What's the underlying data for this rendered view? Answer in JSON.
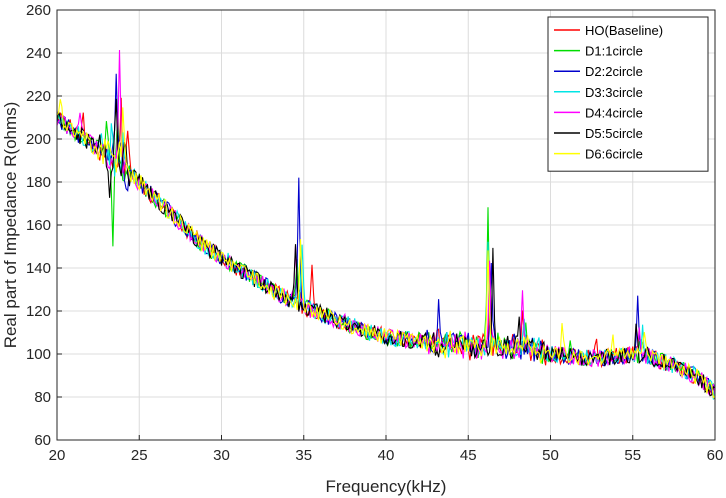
{
  "chart_data": {
    "type": "line",
    "title": "",
    "xlabel": "Frequency(kHz)",
    "ylabel": "Real part of Impedance R(ohms)",
    "xlim": [
      20,
      60
    ],
    "ylim": [
      60,
      260
    ],
    "xticks": [
      20,
      25,
      30,
      35,
      40,
      45,
      50,
      55,
      60
    ],
    "yticks": [
      60,
      80,
      100,
      120,
      140,
      160,
      180,
      200,
      220,
      240,
      260
    ],
    "grid": true,
    "legend_position": "top-right",
    "x_step": 0.1,
    "trend": [
      [
        20,
        210
      ],
      [
        21,
        204
      ],
      [
        22,
        198
      ],
      [
        23,
        193
      ],
      [
        24,
        187
      ],
      [
        25,
        180
      ],
      [
        26,
        172
      ],
      [
        27,
        165
      ],
      [
        28,
        157
      ],
      [
        29,
        150
      ],
      [
        30,
        145
      ],
      [
        31,
        140
      ],
      [
        32,
        135
      ],
      [
        33,
        130
      ],
      [
        34,
        126
      ],
      [
        35,
        122
      ],
      [
        36,
        119
      ],
      [
        37,
        116
      ],
      [
        38,
        113
      ],
      [
        39,
        110
      ],
      [
        40,
        108
      ],
      [
        41,
        107
      ],
      [
        42,
        106
      ],
      [
        43,
        105
      ],
      [
        44,
        104
      ],
      [
        45,
        104
      ],
      [
        46,
        104
      ],
      [
        47,
        104
      ],
      [
        48,
        103
      ],
      [
        49,
        102
      ],
      [
        50,
        100
      ],
      [
        51,
        99
      ],
      [
        52,
        98
      ],
      [
        53,
        98
      ],
      [
        54,
        99
      ],
      [
        55,
        100
      ],
      [
        56,
        99
      ],
      [
        57,
        96
      ],
      [
        58,
        93
      ],
      [
        59,
        89
      ],
      [
        60,
        82
      ]
    ],
    "series": [
      {
        "name": "HO(Baseline)",
        "color": "#ff0000",
        "noise": 4,
        "peaks": [
          [
            21.6,
            12
          ],
          [
            23.9,
            24
          ],
          [
            24.3,
            26
          ],
          [
            34.7,
            10
          ],
          [
            35.5,
            20
          ],
          [
            46.3,
            20
          ],
          [
            48.3,
            14
          ],
          [
            52.8,
            8
          ],
          [
            55.4,
            8
          ]
        ]
      },
      {
        "name": "D1:1circle",
        "color": "#00dd00",
        "noise": 4,
        "peaks": [
          [
            23.0,
            10
          ],
          [
            23.4,
            -38
          ],
          [
            23.7,
            18
          ],
          [
            34.6,
            22
          ],
          [
            46.2,
            64
          ],
          [
            48.5,
            12
          ],
          [
            51.2,
            8
          ],
          [
            55.5,
            10
          ]
        ]
      },
      {
        "name": "D2:2circle",
        "color": "#0000cc",
        "noise": 4,
        "peaks": [
          [
            23.6,
            40
          ],
          [
            23.9,
            12
          ],
          [
            24.2,
            -8
          ],
          [
            34.7,
            58
          ],
          [
            43.2,
            22
          ],
          [
            46.4,
            42
          ],
          [
            48.7,
            8
          ],
          [
            55.3,
            26
          ]
        ]
      },
      {
        "name": "D3:3circle",
        "color": "#00e5e5",
        "noise": 4,
        "peaks": [
          [
            23.3,
            14
          ],
          [
            24.0,
            20
          ],
          [
            34.9,
            32
          ],
          [
            46.2,
            50
          ],
          [
            48.4,
            10
          ],
          [
            55.6,
            14
          ]
        ]
      },
      {
        "name": "D4:4circle",
        "color": "#ff00ff",
        "noise": 4,
        "peaks": [
          [
            21.4,
            14
          ],
          [
            23.8,
            56
          ],
          [
            34.5,
            28
          ],
          [
            46.3,
            36
          ],
          [
            48.3,
            30
          ],
          [
            55.4,
            16
          ]
        ]
      },
      {
        "name": "D5:5circle",
        "color": "#000000",
        "noise": 4,
        "peaks": [
          [
            23.2,
            -26
          ],
          [
            23.6,
            32
          ],
          [
            24.1,
            16
          ],
          [
            34.5,
            30
          ],
          [
            43.1,
            -10
          ],
          [
            46.5,
            44
          ],
          [
            48.1,
            14
          ],
          [
            55.2,
            12
          ]
        ]
      },
      {
        "name": "D6:6circle",
        "color": "#ffff00",
        "noise": 4,
        "peaks": [
          [
            20.2,
            12
          ],
          [
            23.8,
            10
          ],
          [
            24.0,
            28
          ],
          [
            34.8,
            34
          ],
          [
            46.2,
            44
          ],
          [
            50.7,
            16
          ],
          [
            53.8,
            12
          ],
          [
            55.7,
            10
          ]
        ]
      }
    ]
  }
}
